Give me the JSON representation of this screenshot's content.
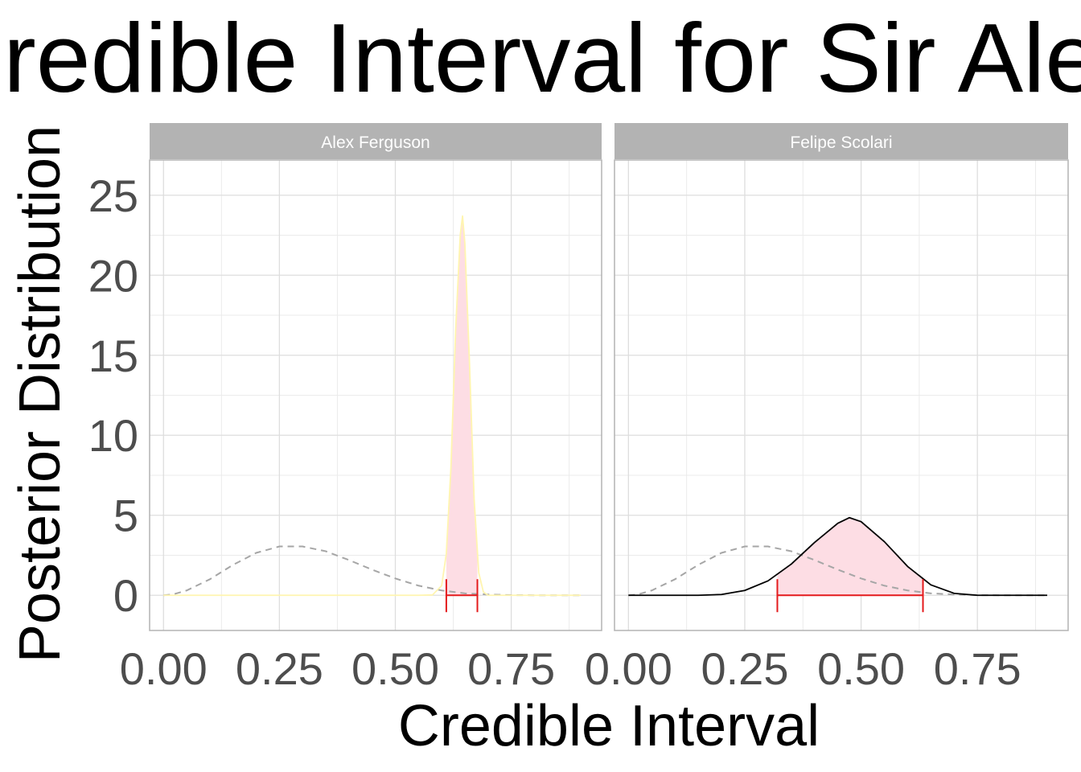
{
  "chart_data": {
    "type": "area",
    "title": "Credible Interval for Sir Alex",
    "xlabel": "Credible Interval",
    "ylabel": "Posterior Distribution",
    "xlim": [
      -0.03,
      0.945
    ],
    "ylim": [
      -2.2,
      27.2
    ],
    "x_ticks": [
      "0.00",
      "0.25",
      "0.50",
      "0.75"
    ],
    "x_tick_values": [
      0,
      0.25,
      0.5,
      0.75
    ],
    "y_ticks": [
      "0",
      "5",
      "10",
      "15",
      "20",
      "25"
    ],
    "y_tick_values": [
      0,
      5,
      10,
      15,
      20,
      25
    ],
    "grid": true,
    "prior": {
      "style": "dashed",
      "color": "#a6a6a6",
      "x": [
        0.0,
        0.02,
        0.05,
        0.1,
        0.15,
        0.2,
        0.25,
        0.3,
        0.35,
        0.4,
        0.45,
        0.5,
        0.55,
        0.6,
        0.65,
        0.7,
        0.75,
        0.8,
        0.85,
        0.9
      ],
      "y": [
        0.0,
        0.05,
        0.3,
        1.0,
        1.9,
        2.65,
        3.05,
        3.05,
        2.75,
        2.2,
        1.6,
        1.05,
        0.6,
        0.3,
        0.12,
        0.05,
        0.01,
        0.0,
        0.0,
        0.0
      ]
    },
    "panels": [
      {
        "strip": "Alex Ferguson",
        "line_color": "#fff5b0",
        "fill_color": "#fddde4",
        "posterior": {
          "x": [
            0.0,
            0.55,
            0.58,
            0.6,
            0.61,
            0.62,
            0.63,
            0.64,
            0.645,
            0.65,
            0.66,
            0.67,
            0.68,
            0.69,
            0.7,
            0.75,
            0.9
          ],
          "y": [
            0.0,
            0.0,
            0.02,
            0.6,
            2.6,
            8.0,
            16.5,
            22.5,
            23.7,
            22.0,
            14.5,
            6.0,
            1.4,
            0.2,
            0.0,
            0.0,
            0.0
          ]
        },
        "interval": [
          0.61,
          0.677
        ]
      },
      {
        "strip": "Felipe Scolari",
        "line_color": "#000000",
        "fill_color": "#fddde4",
        "posterior": {
          "x": [
            0.0,
            0.15,
            0.2,
            0.25,
            0.3,
            0.35,
            0.4,
            0.45,
            0.475,
            0.5,
            0.55,
            0.6,
            0.65,
            0.7,
            0.75,
            0.9
          ],
          "y": [
            0.0,
            0.0,
            0.05,
            0.3,
            0.9,
            1.95,
            3.3,
            4.5,
            4.85,
            4.6,
            3.35,
            1.8,
            0.65,
            0.12,
            0.0,
            0.0
          ]
        },
        "interval": [
          0.32,
          0.633
        ]
      }
    ],
    "interval_color": "#e41a1c"
  }
}
